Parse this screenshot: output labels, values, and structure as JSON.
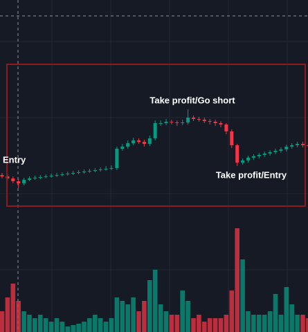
{
  "chart_data": {
    "type": "candlestick",
    "annotations": [
      "Entry",
      "Take profit/Go short",
      "Take profit/Entry"
    ],
    "open": [
      227,
      225,
      222,
      218,
      215,
      220,
      222,
      223,
      224,
      225,
      226,
      227,
      228,
      229,
      230,
      231,
      232,
      233,
      234,
      235,
      236,
      237,
      265,
      268,
      273,
      277,
      275,
      272,
      280,
      302,
      302,
      304,
      303,
      302,
      303,
      310,
      308,
      307,
      305,
      304,
      302,
      300,
      290,
      270,
      245,
      248,
      252,
      254,
      256,
      258,
      260,
      262,
      264,
      268,
      270,
      272,
      270
    ],
    "high": [
      230,
      228,
      225,
      221,
      223,
      225,
      226,
      227,
      228,
      229,
      230,
      231,
      232,
      233,
      234,
      235,
      236,
      237,
      238,
      240,
      241,
      268,
      272,
      277,
      281,
      280,
      278,
      284,
      306,
      306,
      308,
      307,
      306,
      307,
      322,
      313,
      311,
      310,
      308,
      307,
      305,
      302,
      293,
      272,
      251,
      255,
      257,
      259,
      261,
      263,
      265,
      267,
      271,
      273,
      275,
      275,
      273
    ],
    "low": [
      222,
      219,
      215,
      208,
      212,
      218,
      220,
      221,
      222,
      223,
      224,
      225,
      226,
      227,
      228,
      229,
      230,
      231,
      232,
      233,
      234,
      234,
      262,
      265,
      270,
      272,
      268,
      269,
      277,
      298,
      299,
      300,
      298,
      299,
      300,
      305,
      304,
      302,
      300,
      298,
      296,
      286,
      266,
      240,
      242,
      245,
      249,
      251,
      253,
      255,
      257,
      259,
      261,
      265,
      267,
      267,
      266
    ],
    "close": [
      225,
      222,
      218,
      215,
      220,
      222,
      223,
      224,
      225,
      226,
      227,
      228,
      229,
      230,
      231,
      232,
      233,
      234,
      235,
      236,
      237,
      265,
      268,
      273,
      277,
      275,
      272,
      280,
      302,
      302,
      304,
      303,
      302,
      303,
      310,
      308,
      307,
      305,
      304,
      302,
      300,
      290,
      270,
      245,
      248,
      252,
      254,
      256,
      258,
      260,
      262,
      264,
      268,
      270,
      272,
      270,
      269
    ],
    "volume": [
      30,
      50,
      70,
      45,
      30,
      25,
      20,
      25,
      20,
      15,
      20,
      15,
      8,
      10,
      12,
      15,
      20,
      25,
      20,
      15,
      20,
      50,
      45,
      40,
      50,
      30,
      45,
      75,
      90,
      40,
      30,
      25,
      25,
      60,
      45,
      20,
      25,
      15,
      20,
      20,
      20,
      25,
      60,
      150,
      105,
      30,
      25,
      25,
      25,
      30,
      55,
      25,
      65,
      40,
      25,
      25,
      20
    ],
    "ylim": [
      0,
      480
    ],
    "y2lim": [
      0,
      480
    ],
    "up_color": "#089981",
    "down_color": "#f23645",
    "box_color": "#8e1a1e"
  }
}
